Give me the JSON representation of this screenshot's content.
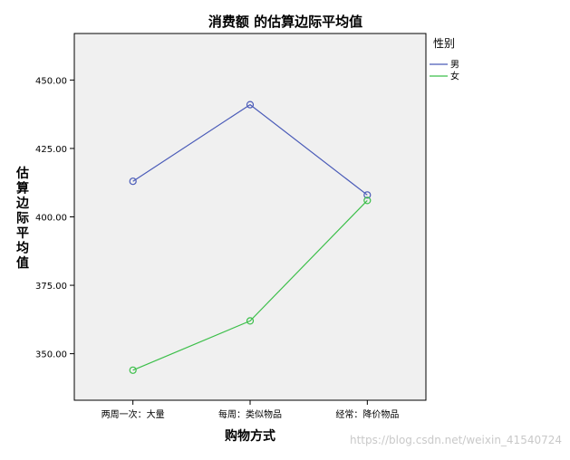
{
  "chart_data": {
    "type": "line",
    "title": "消费额 的估算边际平均值",
    "xlabel": "购物方式",
    "ylabel": "估算边际平均值",
    "categories": [
      "两周一次：大量",
      "每周：类似物品",
      "经常：降价物品"
    ],
    "series": [
      {
        "name": "男",
        "values": [
          413,
          441,
          408
        ],
        "color": "#4a5bb8"
      },
      {
        "name": "女",
        "values": [
          344,
          362,
          406
        ],
        "color": "#3cbf4a"
      }
    ],
    "ylim": [
      333,
      467
    ],
    "yticks": [
      "450.00",
      "425.00",
      "400.00",
      "375.00",
      "350.00"
    ],
    "ytick_values": [
      450,
      425,
      400,
      375,
      350
    ],
    "legend": {
      "title": "性别",
      "position": "right"
    },
    "grid": false
  },
  "watermark": "https://blog.csdn.net/weixin_41540724"
}
